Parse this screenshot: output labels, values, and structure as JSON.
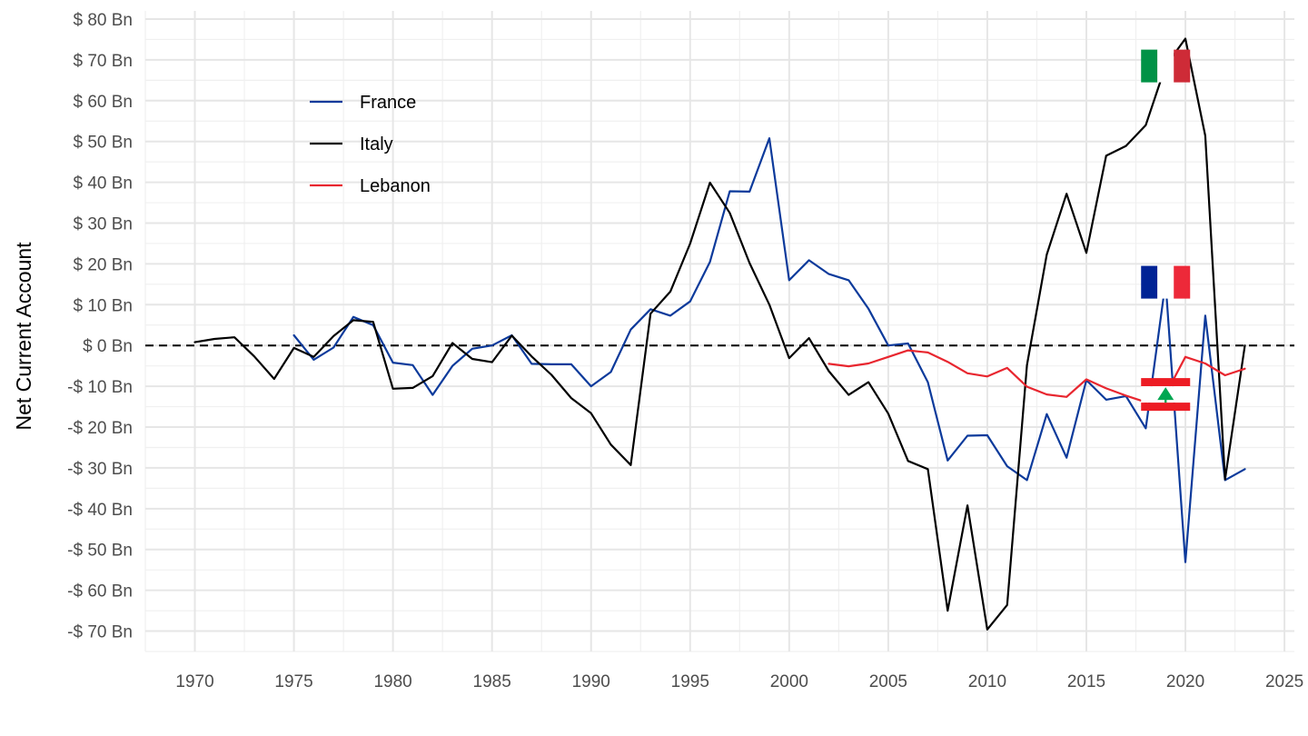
{
  "chart_data": {
    "type": "line",
    "title": "",
    "xlabel": "",
    "ylabel": "Net Current Account",
    "xlim": [
      1967.5,
      2025.5
    ],
    "ylim": [
      -75,
      82
    ],
    "x_ticks": [
      1970,
      1975,
      1980,
      1985,
      1990,
      1995,
      2000,
      2005,
      2010,
      2015,
      2020,
      2025
    ],
    "x_tick_labels": [
      "1970",
      "1975",
      "1980",
      "1985",
      "1990",
      "1995",
      "2000",
      "2005",
      "2010",
      "2015",
      "2020",
      "2025"
    ],
    "y_ticks": [
      80,
      70,
      60,
      50,
      40,
      30,
      20,
      10,
      0,
      -10,
      -20,
      -30,
      -40,
      -50,
      -60,
      -70
    ],
    "y_tick_labels": [
      "$ 80 Bn",
      "$ 70 Bn",
      "$ 60 Bn",
      "$ 50 Bn",
      "$ 40 Bn",
      "$ 30 Bn",
      "$ 20 Bn",
      "$ 10 Bn",
      "$ 0 Bn",
      "-$ 10 Bn",
      "-$ 20 Bn",
      "-$ 30 Bn",
      "-$ 40 Bn",
      "-$ 50 Bn",
      "-$ 60 Bn",
      "-$ 70 Bn"
    ],
    "grid": true,
    "reference_line": {
      "y": 0,
      "style": "dashed",
      "color": "#000000"
    },
    "legend_position": "top-left",
    "series": [
      {
        "name": "France",
        "color": "#0C3A9B",
        "flag": "france-flag",
        "x": [
          1975,
          1976,
          1977,
          1978,
          1979,
          1980,
          1981,
          1982,
          1983,
          1984,
          1985,
          1986,
          1987,
          1988,
          1989,
          1990,
          1991,
          1992,
          1993,
          1994,
          1995,
          1996,
          1997,
          1998,
          1999,
          2000,
          2001,
          2002,
          2003,
          2004,
          2005,
          2006,
          2007,
          2008,
          2009,
          2010,
          2011,
          2012,
          2013,
          2014,
          2015,
          2016,
          2017,
          2018,
          2019,
          2020,
          2021,
          2022,
          2023
        ],
        "values": [
          2.5,
          -3.5,
          -0.5,
          7,
          5,
          -4.2,
          -4.8,
          -12.1,
          -5,
          -0.8,
          0,
          2.5,
          -4.5,
          -4.6,
          -4.6,
          -10,
          -6.5,
          3.9,
          8.9,
          7.3,
          10.8,
          20.5,
          37.8,
          37.7,
          50.8,
          16,
          20.9,
          17.5,
          16,
          9,
          0,
          0.5,
          -9,
          -28.2,
          -22.1,
          -22,
          -29.6,
          -33,
          -16.8,
          -27.5,
          -8.5,
          -13.3,
          -12.4,
          -20.3,
          15.5,
          -53.1,
          7.3,
          -33,
          -30.3
        ]
      },
      {
        "name": "Italy",
        "color": "#000000",
        "flag": "italy-flag",
        "x": [
          1970,
          1971,
          1972,
          1973,
          1974,
          1975,
          1976,
          1977,
          1978,
          1979,
          1980,
          1981,
          1982,
          1983,
          1984,
          1985,
          1986,
          1987,
          1988,
          1989,
          1990,
          1991,
          1992,
          1993,
          1994,
          1995,
          1996,
          1997,
          1998,
          1999,
          2000,
          2001,
          2002,
          2003,
          2004,
          2005,
          2006,
          2007,
          2008,
          2009,
          2010,
          2011,
          2012,
          2013,
          2014,
          2015,
          2016,
          2017,
          2018,
          2019,
          2020,
          2021,
          2022,
          2023
        ],
        "values": [
          0.8,
          1.6,
          2,
          -2.7,
          -8.2,
          -0.6,
          -2.8,
          2.3,
          6.2,
          5.8,
          -10.6,
          -10.4,
          -7.5,
          0.6,
          -3.3,
          -4.1,
          2.4,
          -2.7,
          -7.2,
          -12.9,
          -16.6,
          -24.3,
          -29.3,
          7.8,
          13.2,
          25,
          39.9,
          32.5,
          20.2,
          10,
          -3.1,
          1.8,
          -6.3,
          -12.1,
          -9,
          -16.7,
          -28.3,
          -30.3,
          -65,
          -39.2,
          -69.6,
          -63.6,
          -4.8,
          22.3,
          37.2,
          22.7,
          46.5,
          48.9,
          54,
          68.5,
          75.2,
          51.4,
          -32.8,
          0
        ]
      },
      {
        "name": "Lebanon",
        "color": "#E8262F",
        "flag": "lebanon-flag",
        "x": [
          2002,
          2003,
          2004,
          2005,
          2006,
          2007,
          2008,
          2009,
          2010,
          2011,
          2012,
          2013,
          2014,
          2015,
          2016,
          2017,
          2018,
          2019,
          2020,
          2021,
          2022,
          2023
        ],
        "values": [
          -4.5,
          -5.1,
          -4.4,
          -2.8,
          -1.2,
          -1.7,
          -4,
          -6.8,
          -7.6,
          -5.5,
          -10.1,
          -12,
          -12.6,
          -8.3,
          -10.5,
          -12.3,
          -13.9,
          -12,
          -2.8,
          -4.4,
          -7.3,
          -5.7
        ]
      }
    ]
  }
}
